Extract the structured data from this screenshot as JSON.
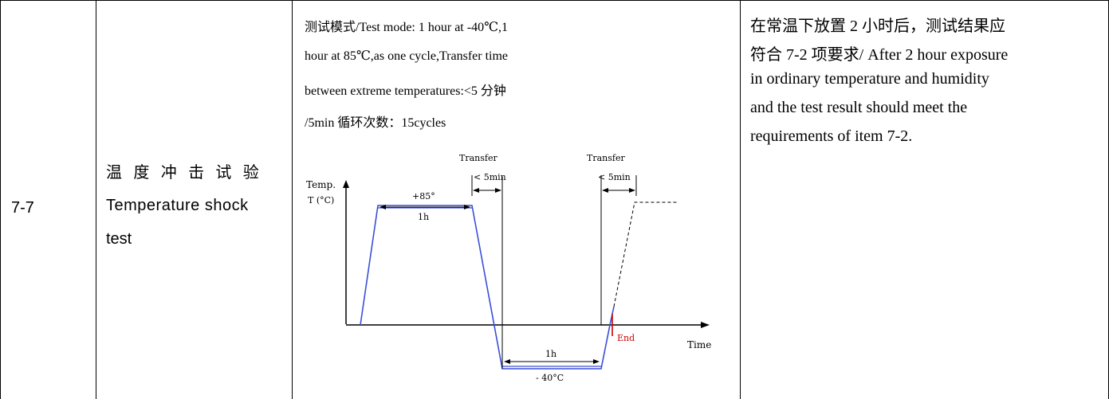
{
  "row": {
    "item_no": "7-7",
    "test_name_cn": "温 度 冲 击 试 验",
    "test_name_en_1": "Temperature shock",
    "test_name_en_2": "test",
    "method_lines": [
      "测试模式/Test mode: 1 hour at -40℃,1",
      "hour at 85℃,as one cycle,Transfer time",
      "between extreme temperatures:<5 分钟",
      "/5min 循环次数：15cycles"
    ],
    "requirement_lines": [
      "在常温下放置 2 小时后，测试结果应",
      "符合 7-2 项要求/ After 2 hour exposure",
      "in ordinary temperature and humidity",
      "and the test result should meet the",
      "requirements of item 7-2."
    ]
  },
  "diagram": {
    "y_label_1": "Temp.",
    "y_label_2": "T (°C)",
    "x_label": "Time",
    "transfer_label_1": "Transfer",
    "transfer_time_1": "< 5min",
    "transfer_label_2": "Transfer",
    "transfer_time_2": "< 5min",
    "high_temp_label": "+85°",
    "high_duration_label": "1h",
    "low_duration_label": "1h",
    "low_temp_label": "- 40°C",
    "end_label": "End",
    "colors": {
      "profile": "#3a4fd6",
      "end": "#cc0000",
      "axis": "#000000"
    }
  }
}
